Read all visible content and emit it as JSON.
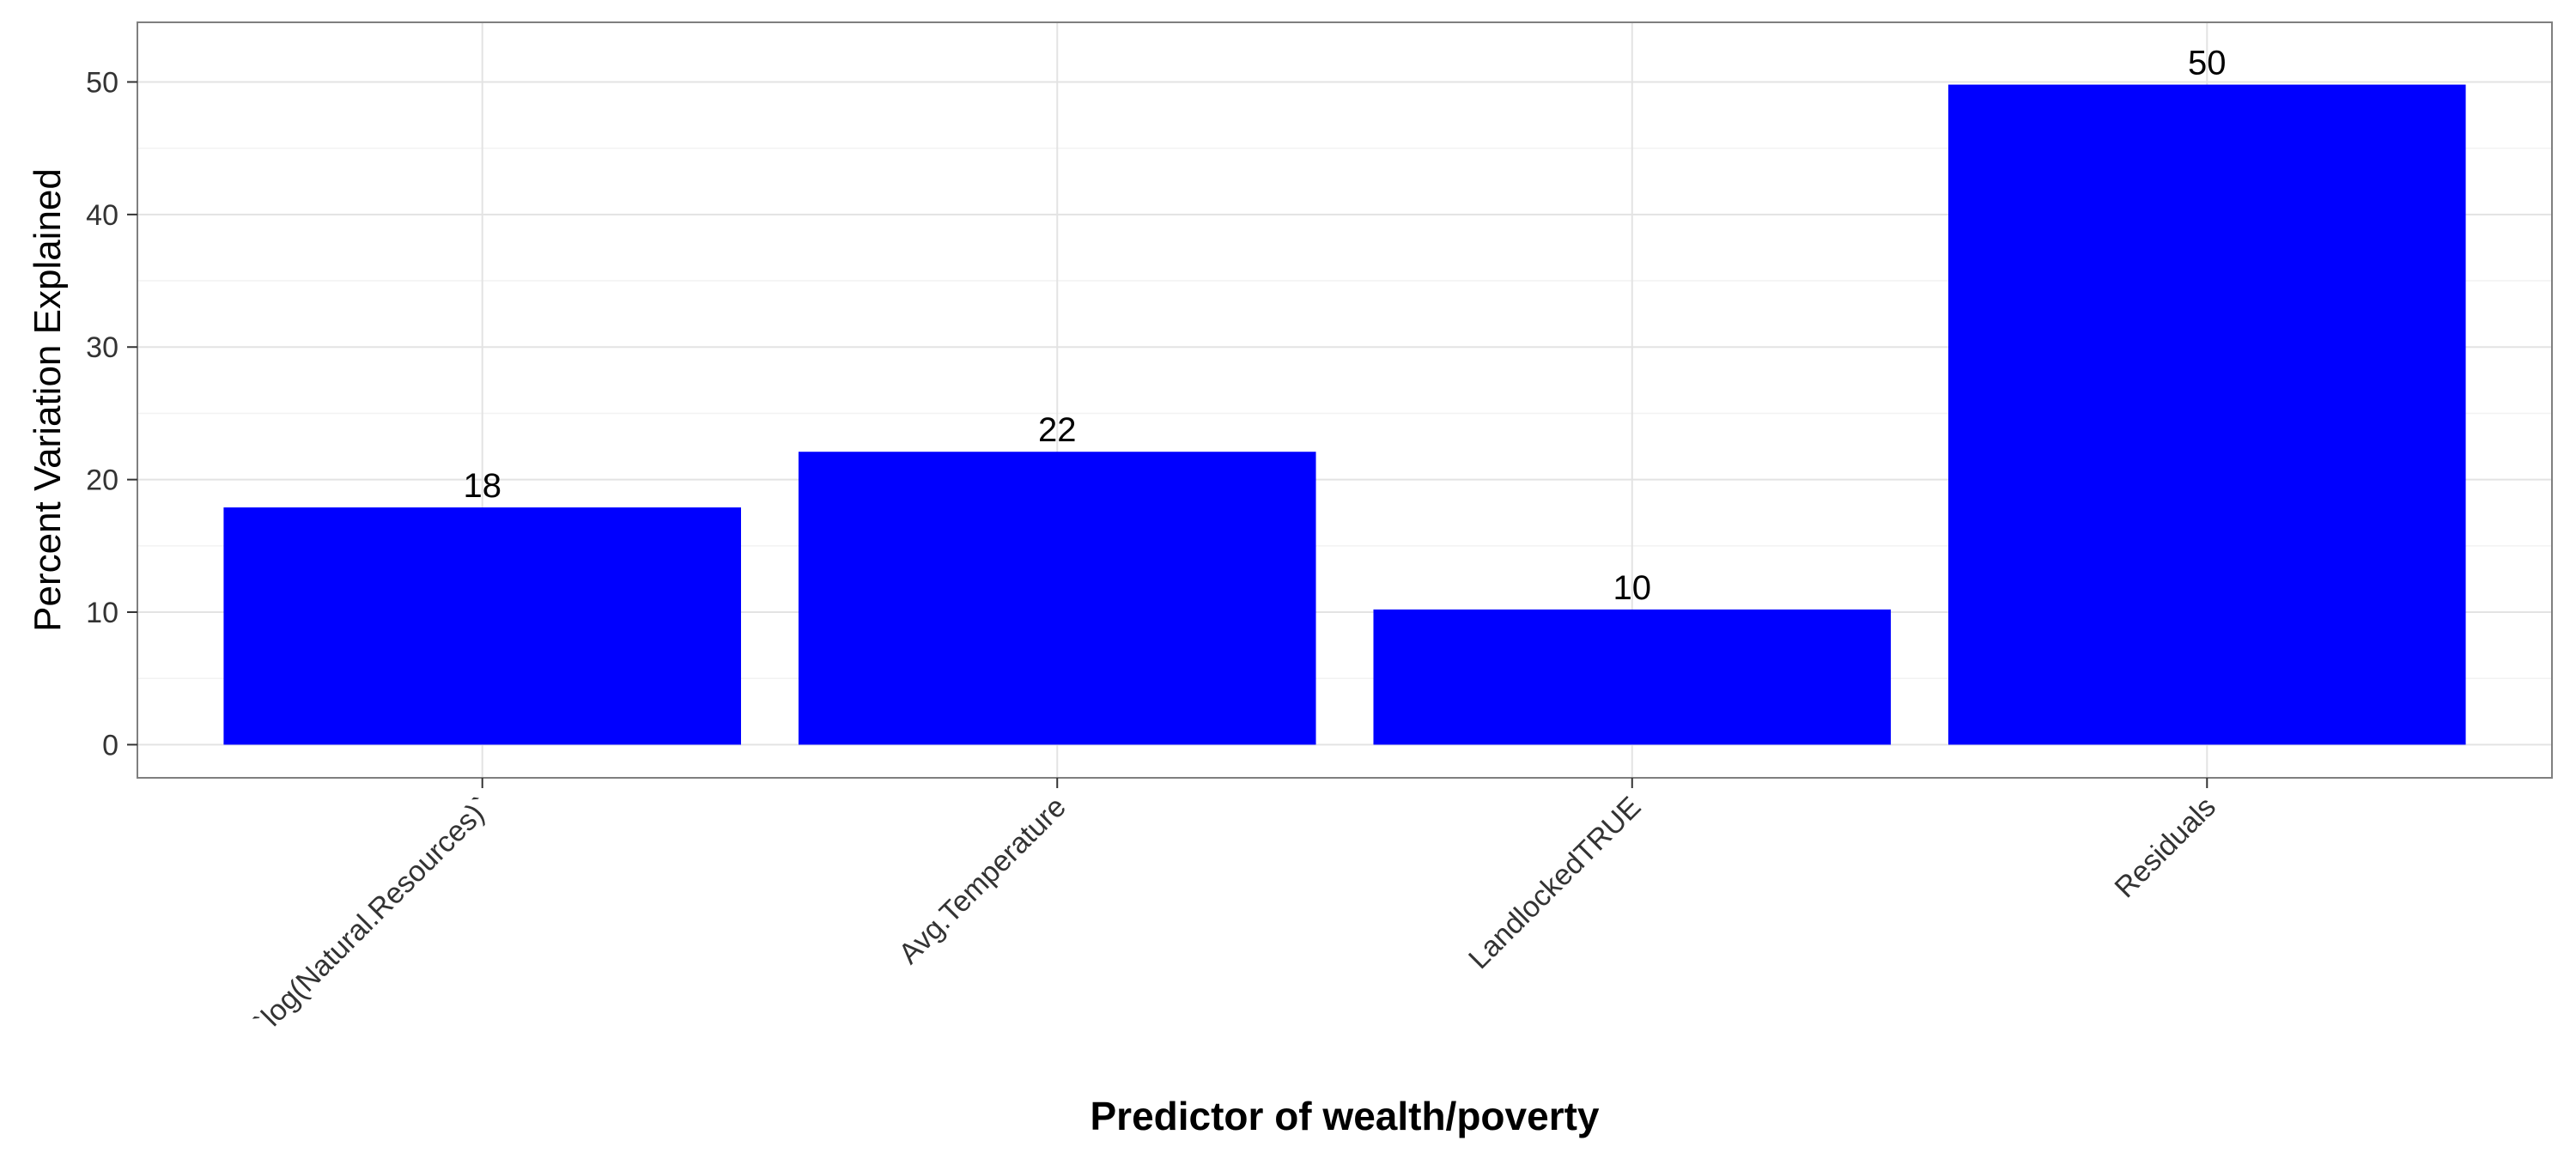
{
  "colors": {
    "bar": "#0000ff",
    "grid_major": "#e3e3e3",
    "grid_minor": "#f2f2f2",
    "panel_border": "#7f7f7f",
    "tick": "#333333"
  },
  "chart_data": {
    "type": "bar",
    "categories": [
      "`log(Natural.Resources)`",
      "Avg.Temperature",
      "LandlockedTRUE",
      "Residuals"
    ],
    "values": [
      18,
      22,
      10,
      50
    ],
    "bar_labels": [
      "18",
      "22",
      "10",
      "50"
    ],
    "value_precise": [
      17.9,
      22.1,
      10.2,
      49.8
    ],
    "xlabel": "Predictor of wealth/poverty",
    "ylabel": "Percent Variation Explained",
    "ylim": [
      -2.5,
      54.5
    ],
    "yticks": [
      0,
      10,
      20,
      30,
      40,
      50
    ],
    "grid": true,
    "legend": "none"
  }
}
